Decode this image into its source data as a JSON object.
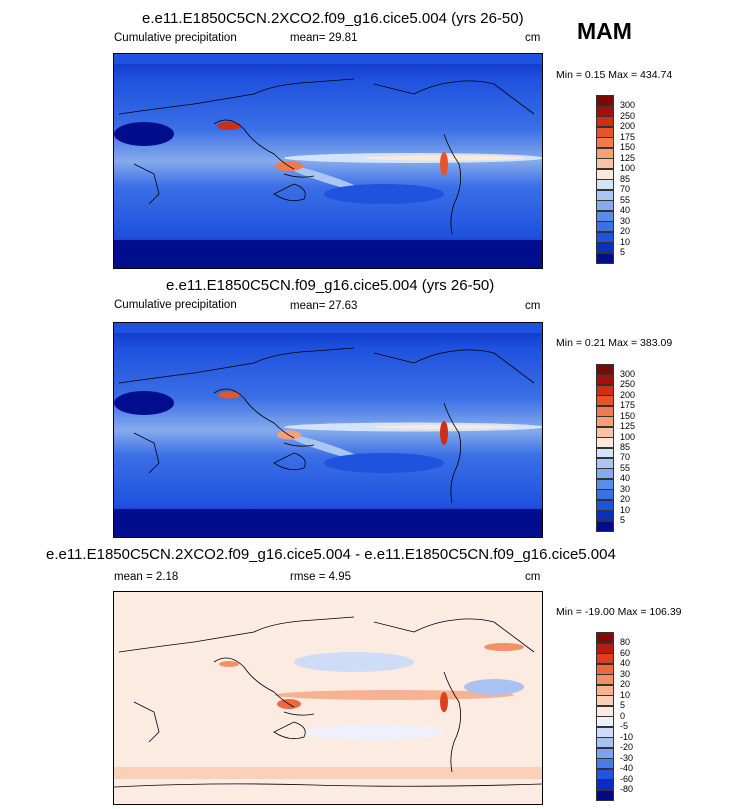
{
  "season": "MAM",
  "colors": {
    "precip_scale": [
      "#000e8e",
      "#0a2fc2",
      "#1f52de",
      "#3b6fe6",
      "#5a8de8",
      "#86abec",
      "#aac6f1",
      "#d3e3f9",
      "#fce9dc",
      "#f9c3a6",
      "#f69f78",
      "#ef7a4e",
      "#e6542a",
      "#cd2f14",
      "#a60d0d",
      "#7a0a0a"
    ],
    "diff_scale": [
      "#000a8a",
      "#0b2bc4",
      "#2253e2",
      "#4a7be8",
      "#7ea2ec",
      "#a9c2f2",
      "#cfdcf8",
      "#eef1fb",
      "#fcebe0",
      "#fad0b8",
      "#f8b293",
      "#f48f69",
      "#ec6941",
      "#dd3f1d",
      "#b81b10",
      "#820a0a"
    ]
  },
  "panels": [
    {
      "title": "e.e11.E1850C5CN.2XCO2.f09_g16.cice5.004 (yrs 26-50)",
      "left_label": "Cumulative precipitation",
      "mean_text": "mean=  29.81",
      "units": "cm",
      "minmax": "Min =   0.15 Max = 434.74"
    },
    {
      "title": "e.e11.E1850C5CN.f09_g16.cice5.004 (yrs 26-50)",
      "left_label": "Cumulative precipitation",
      "mean_text": "mean=  27.63",
      "units": "cm",
      "minmax": "Min =   0.21 Max = 383.09"
    },
    {
      "title": "e.e11.E1850C5CN.2XCO2.f09_g16.cice5.004 - e.e11.E1850C5CN.f09_g16.cice5.004",
      "left_label": "mean =  2.18",
      "mean_text": "rmse =  4.95",
      "units": "cm",
      "minmax": "Min = -19.00 Max = 106.39"
    }
  ],
  "chart_data": [
    {
      "type": "heatmap",
      "title": "e.e11.E1850C5CN.2XCO2.f09_g16.cice5.004 (yrs 26-50)",
      "variable": "Cumulative precipitation",
      "units": "cm",
      "mean": 29.81,
      "min": 0.15,
      "max": 434.74,
      "contour_levels": [
        5,
        10,
        20,
        30,
        40,
        55,
        70,
        85,
        100,
        125,
        150,
        175,
        200,
        250,
        300
      ]
    },
    {
      "type": "heatmap",
      "title": "e.e11.E1850C5CN.f09_g16.cice5.004 (yrs 26-50)",
      "variable": "Cumulative precipitation",
      "units": "cm",
      "mean": 27.63,
      "min": 0.21,
      "max": 383.09,
      "contour_levels": [
        5,
        10,
        20,
        30,
        40,
        55,
        70,
        85,
        100,
        125,
        150,
        175,
        200,
        250,
        300
      ]
    },
    {
      "type": "heatmap",
      "title": "e.e11.E1850C5CN.2XCO2.f09_g16.cice5.004 - e.e11.E1850C5CN.f09_g16.cice5.004",
      "units": "cm",
      "mean": 2.18,
      "rmse": 4.95,
      "min": -19.0,
      "max": 106.39,
      "contour_levels": [
        -80,
        -60,
        -40,
        -30,
        -20,
        -10,
        -5,
        0,
        5,
        10,
        20,
        30,
        40,
        60,
        80
      ]
    }
  ]
}
